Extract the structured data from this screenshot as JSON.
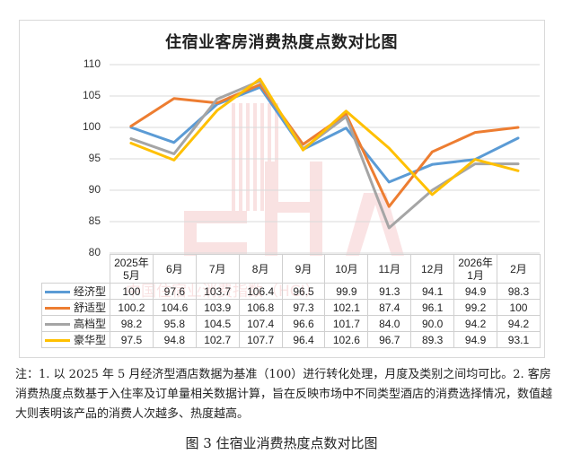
{
  "chart_data": {
    "type": "line",
    "title": "住宿业客房消费热度点数对比图",
    "xlabel": "",
    "ylabel": "",
    "ylim": [
      80,
      110
    ],
    "yticks": [
      110,
      105,
      100,
      95,
      90,
      85,
      80
    ],
    "grid": true,
    "legend_position": "data-table-left",
    "categories": [
      "2025年\n5月",
      "6月",
      "7月",
      "8月",
      "9月",
      "10月",
      "11月",
      "12月",
      "2026年\n1月",
      "2月"
    ],
    "series": [
      {
        "name": "经济型",
        "color": "#5B9BD5",
        "values": [
          100,
          97.6,
          103.7,
          106.4,
          96.5,
          99.9,
          91.3,
          94.1,
          94.9,
          98.3
        ]
      },
      {
        "name": "舒适型",
        "color": "#ED7D31",
        "values": [
          100.2,
          104.6,
          103.9,
          106.8,
          97.3,
          102.1,
          87.4,
          96.1,
          99.2,
          100
        ]
      },
      {
        "name": "高档型",
        "color": "#A5A5A5",
        "values": [
          98.2,
          95.8,
          104.5,
          107.4,
          96.6,
          101.7,
          84.0,
          90.0,
          94.2,
          94.2
        ]
      },
      {
        "name": "豪华型",
        "color": "#FFC000",
        "values": [
          97.5,
          94.8,
          102.7,
          107.7,
          96.4,
          102.6,
          96.7,
          89.3,
          94.9,
          93.1
        ]
      }
    ],
    "value_labels": [
      [
        "100",
        "97.6",
        "103.7",
        "106.4",
        "96.5",
        "99.9",
        "91.3",
        "94.1",
        "94.9",
        "98.3"
      ],
      [
        "100.2",
        "104.6",
        "103.9",
        "106.8",
        "97.3",
        "102.1",
        "87.4",
        "96.1",
        "99.2",
        "100"
      ],
      [
        "98.2",
        "95.8",
        "104.5",
        "107.4",
        "96.6",
        "101.7",
        "84.0",
        "90.0",
        "94.2",
        "94.2"
      ],
      [
        "97.5",
        "94.8",
        "102.7",
        "107.7",
        "96.4",
        "102.6",
        "96.7",
        "89.3",
        "94.9",
        "93.1"
      ]
    ]
  },
  "table": {
    "headers": [
      {
        "l1": "2025年",
        "l2": "5月"
      },
      {
        "l1": "6月",
        "l2": ""
      },
      {
        "l1": "7月",
        "l2": ""
      },
      {
        "l1": "8月",
        "l2": ""
      },
      {
        "l1": "9月",
        "l2": ""
      },
      {
        "l1": "10月",
        "l2": ""
      },
      {
        "l1": "11月",
        "l2": ""
      },
      {
        "l1": "12月",
        "l2": ""
      },
      {
        "l1": "2026年",
        "l2": "1月"
      },
      {
        "l1": "2月",
        "l2": ""
      }
    ]
  },
  "watermark": {
    "text": "中国住宿业消费指数（HCI）"
  },
  "note": "注：1. 以 2025 年 5 月经济型酒店数据为基准（100）进行转化处理，月度及类别之间均可比。2. 客房消费热度点数基于入住率及订单量相关数据计算，旨在反映市场中不同类型酒店的消费选择情况，数值越大则表明该产品的消费人次越多、热度越高。",
  "caption": "图 3  住宿业消费热度点数对比图"
}
